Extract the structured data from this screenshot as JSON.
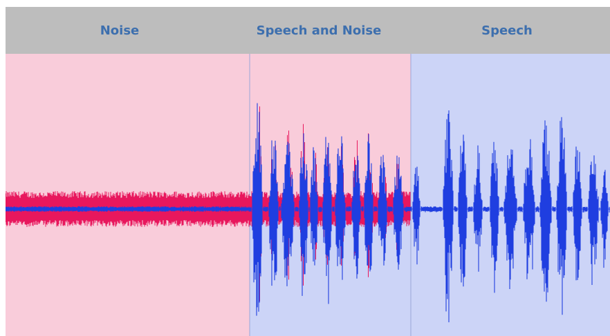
{
  "regions": [
    {
      "label": "Noise",
      "background": "#f9ccda"
    },
    {
      "label": "Speech and Noise",
      "background_top": "#f9ccda",
      "background_bottom": "#ccd4f7"
    },
    {
      "label": "Speech",
      "background": "#ccd4f7"
    }
  ],
  "colors": {
    "header_background": "#bdbdbd",
    "header_text": "#3d6fae",
    "noise_trace": "#e8175d",
    "speech_trace": "#1f3ee0",
    "noisy_region_bg": "#f9ccda",
    "clean_region_bg": "#ccd4f7",
    "divider": "#9aa6d8"
  },
  "traces": [
    {
      "role": "noise",
      "color": "#e8175d"
    },
    {
      "role": "speech",
      "color": "#1f3ee0"
    }
  ]
}
